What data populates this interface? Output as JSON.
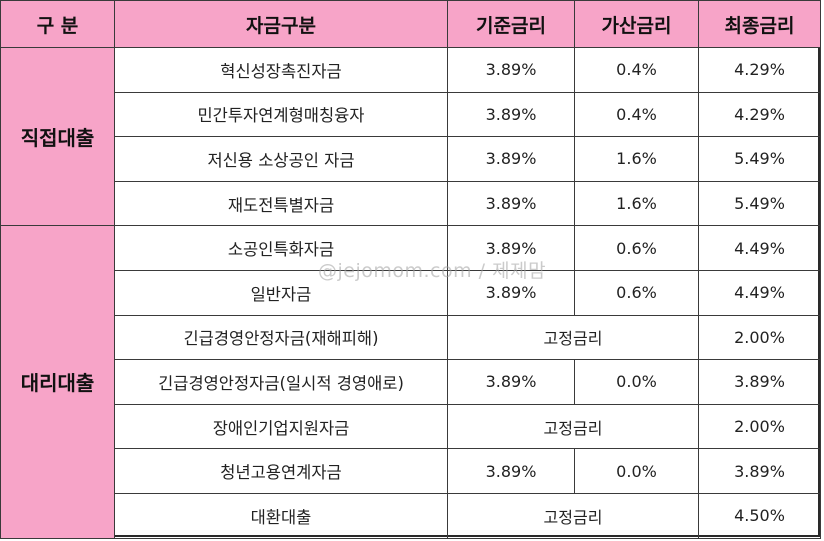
{
  "header": {
    "category": "구  분",
    "fund_type": "자금구분",
    "base_rate": "기준금리",
    "added_rate": "가산금리",
    "final_rate": "최종금리"
  },
  "groups": {
    "direct": {
      "label": "직접대출"
    },
    "agency": {
      "label": "대리대출"
    }
  },
  "rows": [
    {
      "name": "혁신성장촉진자금",
      "base": "3.89%",
      "added": "0.4%",
      "final": "4.29%"
    },
    {
      "name": "민간투자연계형매칭융자",
      "base": "3.89%",
      "added": "0.4%",
      "final": "4.29%"
    },
    {
      "name": "저신용 소상공인 자금",
      "base": "3.89%",
      "added": "1.6%",
      "final": "5.49%"
    },
    {
      "name": "재도전특별자금",
      "base": "3.89%",
      "added": "1.6%",
      "final": "5.49%"
    },
    {
      "name": "소공인특화자금",
      "base": "3.89%",
      "added": "0.6%",
      "final": "4.49%"
    },
    {
      "name": "일반자금",
      "base": "3.89%",
      "added": "0.6%",
      "final": "4.49%"
    },
    {
      "name": "긴급경영안정자금(재해피해)",
      "fixed": "고정금리",
      "final": "2.00%"
    },
    {
      "name": "긴급경영안정자금(일시적 경영애로)",
      "base": "3.89%",
      "added": "0.0%",
      "final": "3.89%"
    },
    {
      "name": "장애인기업지원자금",
      "fixed": "고정금리",
      "final": "2.00%"
    },
    {
      "name": "청년고용연계자금",
      "base": "3.89%",
      "added": "0.0%",
      "final": "3.89%"
    },
    {
      "name": "대환대출",
      "fixed": "고정금리",
      "final": "4.50%"
    }
  ],
  "watermark": "@jejomom.com / 제제맘",
  "colors": {
    "header_bg": "#f7a4c8",
    "border": "#3a3a3a",
    "text": "#222222"
  }
}
